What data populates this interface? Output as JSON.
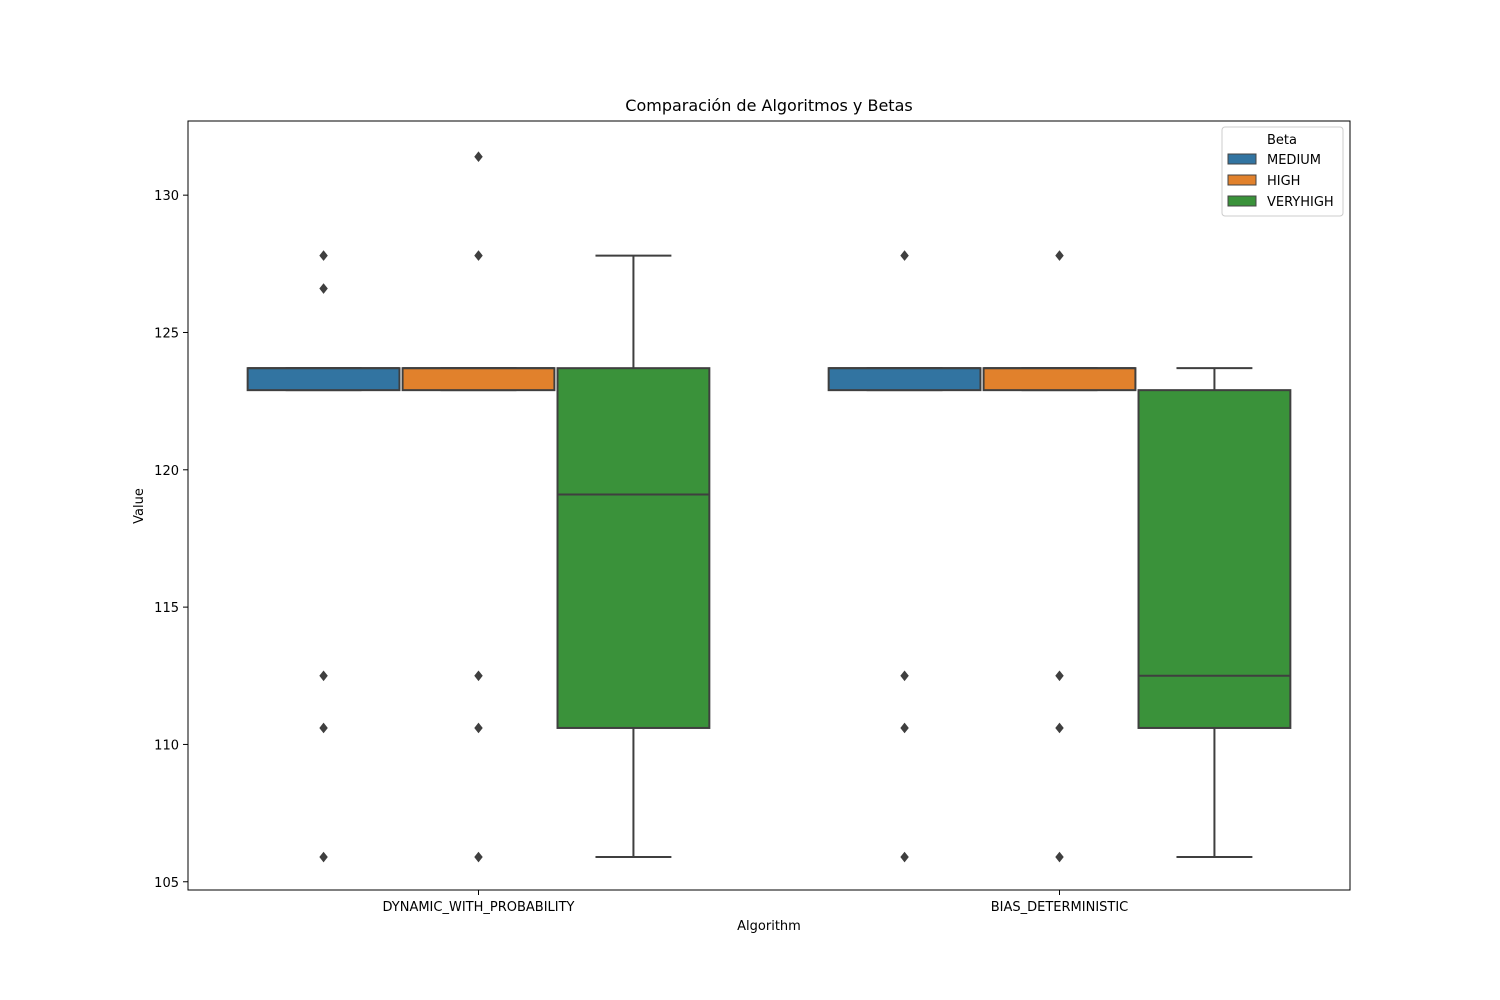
{
  "chart_data": {
    "type": "boxplot",
    "title": "Comparación de Algoritmos y Betas",
    "xlabel": "Algorithm",
    "ylabel": "Value",
    "ylim": [
      104.7,
      132.7
    ],
    "yticks": [
      105,
      110,
      115,
      120,
      125,
      130
    ],
    "categories": [
      "DYNAMIC_WITH_PROBABILITY",
      "BIAS_DETERMINISTIC"
    ],
    "legend": {
      "title": "Beta",
      "placement": "top-right",
      "entries": [
        "MEDIUM",
        "HIGH",
        "VERYHIGH"
      ]
    },
    "series": [
      {
        "name": "MEDIUM",
        "color": "#3274a1",
        "boxes": [
          {
            "q1": 122.9,
            "median": 123.7,
            "q3": 123.7,
            "whisker_low": 122.9,
            "whisker_high": 123.7,
            "outliers": [
              127.8,
              126.6,
              112.5,
              110.6,
              105.9
            ]
          },
          {
            "q1": 122.9,
            "median": 123.7,
            "q3": 123.7,
            "whisker_low": 122.9,
            "whisker_high": 123.7,
            "outliers": [
              127.8,
              112.5,
              110.6,
              105.9
            ]
          }
        ]
      },
      {
        "name": "HIGH",
        "color": "#e1812c",
        "boxes": [
          {
            "q1": 122.9,
            "median": 123.7,
            "q3": 123.7,
            "whisker_low": 122.9,
            "whisker_high": 123.7,
            "outliers": [
              131.4,
              127.8,
              112.5,
              110.6,
              105.9
            ]
          },
          {
            "q1": 122.9,
            "median": 123.7,
            "q3": 123.7,
            "whisker_low": 122.9,
            "whisker_high": 123.7,
            "outliers": [
              127.8,
              112.5,
              110.6,
              105.9
            ]
          }
        ]
      },
      {
        "name": "VERYHIGH",
        "color": "#3a923a",
        "boxes": [
          {
            "q1": 110.6,
            "median": 119.1,
            "q3": 123.7,
            "whisker_low": 105.9,
            "whisker_high": 127.8,
            "outliers": []
          },
          {
            "q1": 110.6,
            "median": 112.5,
            "q3": 122.9,
            "whisker_low": 105.9,
            "whisker_high": 123.7,
            "outliers": []
          }
        ]
      }
    ],
    "grid": false
  }
}
